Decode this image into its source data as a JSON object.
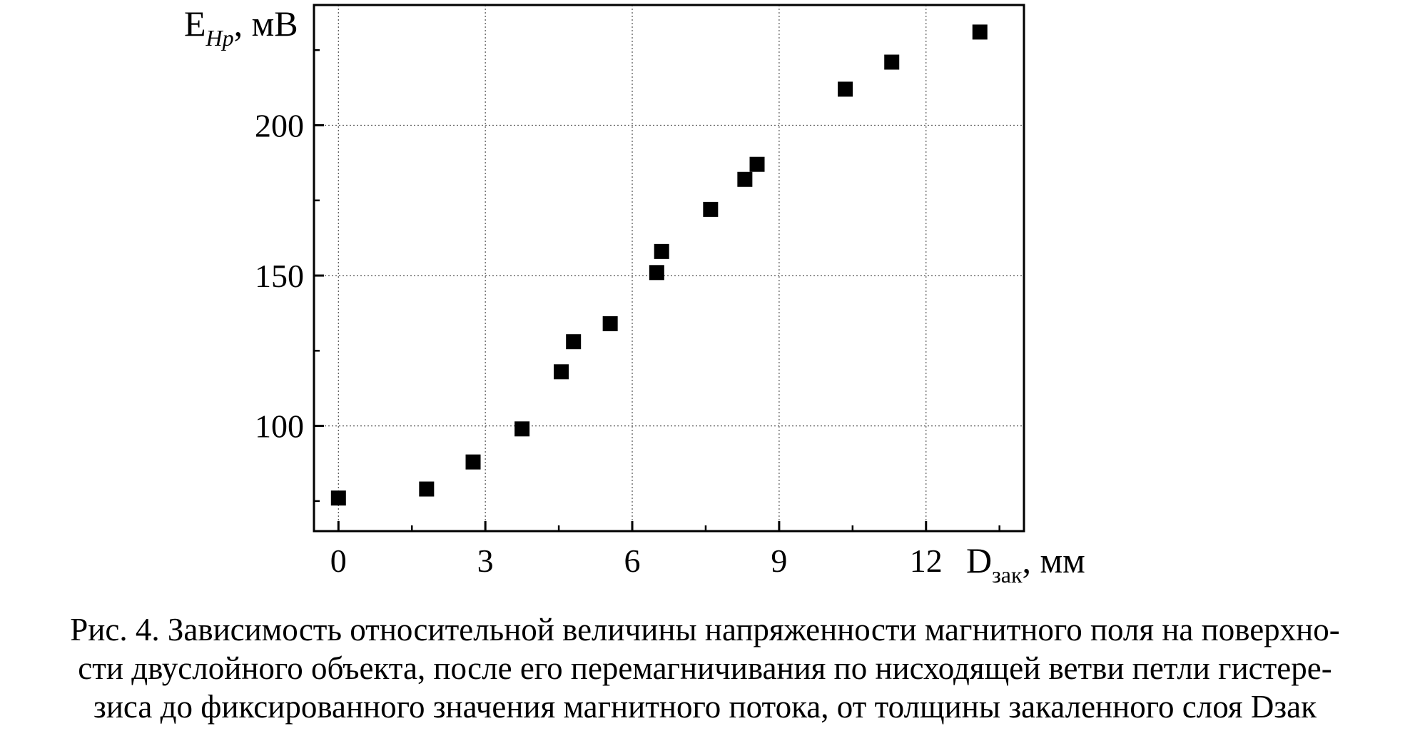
{
  "chart_data": {
    "type": "scatter",
    "title": "",
    "xlabel_main": "D",
    "xlabel_sub": "зак",
    "xlabel_unit": ", мм",
    "ylabel_main": "E",
    "ylabel_sub": "Hp",
    "ylabel_unit": ", мВ",
    "xlim": [
      -0.5,
      14
    ],
    "ylim": [
      65,
      240
    ],
    "xticks": [
      "0",
      "3",
      "6",
      "9",
      "12"
    ],
    "yticks": [
      "100",
      "150",
      "200"
    ],
    "grid": true,
    "marker": "square",
    "marker_color": "#000000",
    "series": [
      {
        "points": [
          {
            "x": 0.0,
            "y": 76
          },
          {
            "x": 1.8,
            "y": 79
          },
          {
            "x": 2.75,
            "y": 88
          },
          {
            "x": 3.75,
            "y": 99
          },
          {
            "x": 4.55,
            "y": 118
          },
          {
            "x": 4.8,
            "y": 128
          },
          {
            "x": 5.55,
            "y": 134
          },
          {
            "x": 6.5,
            "y": 151
          },
          {
            "x": 6.6,
            "y": 158
          },
          {
            "x": 7.6,
            "y": 172
          },
          {
            "x": 8.3,
            "y": 182
          },
          {
            "x": 8.55,
            "y": 187
          },
          {
            "x": 10.35,
            "y": 212
          },
          {
            "x": 11.3,
            "y": 221
          },
          {
            "x": 13.1,
            "y": 231
          }
        ]
      }
    ]
  },
  "caption": {
    "lines": [
      "Рис. 4. Зависимость относительной величины напряженности магнитного поля на поверхно-",
      "сти двуслойного объекта, после его перемагничивания по нисходящей ветви петли гистере-",
      "зиса до фиксированного значения магнитного потока, от толщины закаленного слоя Dзак"
    ]
  }
}
